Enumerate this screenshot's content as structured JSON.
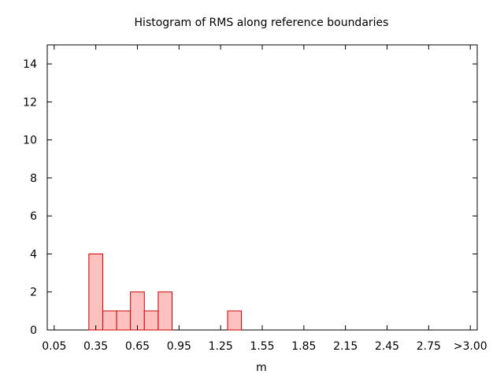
{
  "chart_data": {
    "type": "bar",
    "title": "Histogram of RMS along reference boundaries",
    "xlabel": "m",
    "ylabel": "",
    "xlim": [
      0.0,
      3.1
    ],
    "ylim": [
      0,
      15
    ],
    "bin_width": 0.1,
    "x_tick_values": [
      0.05,
      0.35,
      0.65,
      0.95,
      1.25,
      1.55,
      1.85,
      2.15,
      2.45,
      2.75,
      3.05
    ],
    "x_tick_labels": [
      "0.05",
      "0.35",
      "0.65",
      "0.95",
      "1.25",
      "1.55",
      "1.85",
      "2.15",
      "2.45",
      "2.75",
      ">3.00"
    ],
    "y_tick_values": [
      0,
      2,
      4,
      6,
      8,
      10,
      12,
      14
    ],
    "y_tick_labels": [
      "0",
      "2",
      "4",
      "6",
      "8",
      "10",
      "12",
      "14"
    ],
    "bars": [
      {
        "x": 0.35,
        "value": 4
      },
      {
        "x": 0.45,
        "value": 1
      },
      {
        "x": 0.55,
        "value": 1
      },
      {
        "x": 0.65,
        "value": 2
      },
      {
        "x": 0.75,
        "value": 1
      },
      {
        "x": 0.85,
        "value": 2
      },
      {
        "x": 1.35,
        "value": 1
      }
    ],
    "grid": false,
    "legend": "none",
    "colors": {
      "bar_fill": "#ffc0c0",
      "bar_stroke": "#cc0000",
      "axis": "#000000"
    }
  }
}
